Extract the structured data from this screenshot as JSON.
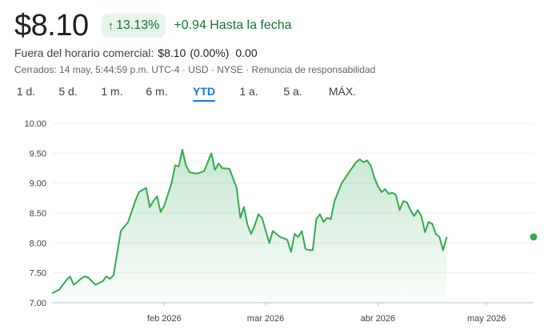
{
  "quote": {
    "price": "$8.10",
    "change_percent": "13.13%",
    "change_abs": "+0.94 Hasta la fecha",
    "arrow_icon": "arrow-up-icon"
  },
  "after_hours": {
    "label": "Fuera del horario comercial:",
    "price": "$8.10",
    "percent": "(0.00%)",
    "abs": "0.00"
  },
  "meta": "Cerrados: 14 may, 5:44:59 p.m. UTC-4 · USD · NYSE · Renuncia de responsabilidad",
  "ranges": [
    {
      "label": "1 d.",
      "active": false
    },
    {
      "label": "5 d.",
      "active": false
    },
    {
      "label": "1 m.",
      "active": false
    },
    {
      "label": "6 m.",
      "active": false
    },
    {
      "label": "YTD",
      "active": true
    },
    {
      "label": "1 a.",
      "active": false
    },
    {
      "label": "5 a.",
      "active": false
    },
    {
      "label": "MÁX.",
      "active": false
    }
  ],
  "colors": {
    "line": "#34a853",
    "positive_text": "#137333",
    "positive_bg": "#e6f4ea",
    "active_tab": "#1a73e8"
  },
  "chart_data": {
    "type": "area",
    "ylim": [
      7.0,
      10.0
    ],
    "yticks": [
      "10.00",
      "9.50",
      "9.00",
      "8.50",
      "8.00",
      "7.50",
      "7.00"
    ],
    "xlim": [
      0,
      133
    ],
    "xticks": [
      {
        "label": "feb 2026",
        "x": 31
      },
      {
        "label": "mar 2026",
        "x": 59
      },
      {
        "label": "abr 2026",
        "x": 90
      },
      {
        "label": "may 2026",
        "x": 120
      }
    ],
    "values": [
      [
        0,
        7.16
      ],
      [
        2,
        7.22
      ],
      [
        4,
        7.38
      ],
      [
        5,
        7.44
      ],
      [
        6,
        7.3
      ],
      [
        8,
        7.4
      ],
      [
        9,
        7.44
      ],
      [
        10,
        7.42
      ],
      [
        12,
        7.3
      ],
      [
        14,
        7.36
      ],
      [
        15,
        7.44
      ],
      [
        16,
        7.4
      ],
      [
        17,
        7.46
      ],
      [
        19,
        8.2
      ],
      [
        21,
        8.35
      ],
      [
        23,
        8.7
      ],
      [
        24,
        8.85
      ],
      [
        26,
        8.92
      ],
      [
        27,
        8.6
      ],
      [
        28,
        8.7
      ],
      [
        29,
        8.78
      ],
      [
        30,
        8.52
      ],
      [
        31,
        8.62
      ],
      [
        33,
        9.0
      ],
      [
        34,
        9.3
      ],
      [
        35,
        9.28
      ],
      [
        36,
        9.56
      ],
      [
        37,
        9.3
      ],
      [
        38,
        9.18
      ],
      [
        40,
        9.16
      ],
      [
        42,
        9.2
      ],
      [
        43,
        9.35
      ],
      [
        44,
        9.5
      ],
      [
        45,
        9.22
      ],
      [
        46,
        9.33
      ],
      [
        47,
        9.25
      ],
      [
        49,
        9.24
      ],
      [
        51,
        8.92
      ],
      [
        52,
        8.42
      ],
      [
        53,
        8.6
      ],
      [
        54,
        8.3
      ],
      [
        55,
        8.15
      ],
      [
        56,
        8.3
      ],
      [
        57,
        8.48
      ],
      [
        58,
        8.42
      ],
      [
        60,
        8.0
      ],
      [
        61,
        8.2
      ],
      [
        63,
        8.1
      ],
      [
        64,
        8.08
      ],
      [
        65,
        8.05
      ],
      [
        66,
        7.85
      ],
      [
        67,
        8.15
      ],
      [
        68,
        8.1
      ],
      [
        69,
        8.2
      ],
      [
        70,
        7.9
      ],
      [
        71,
        7.88
      ],
      [
        72,
        7.88
      ],
      [
        73,
        8.4
      ],
      [
        74,
        8.48
      ],
      [
        75,
        8.35
      ],
      [
        76,
        8.42
      ],
      [
        77,
        8.4
      ],
      [
        78,
        8.7
      ],
      [
        80,
        9.0
      ],
      [
        82,
        9.18
      ],
      [
        84,
        9.35
      ],
      [
        85,
        9.4
      ],
      [
        86,
        9.35
      ],
      [
        87,
        9.38
      ],
      [
        88,
        9.3
      ],
      [
        89,
        9.1
      ],
      [
        90,
        8.95
      ],
      [
        91,
        8.85
      ],
      [
        92,
        8.9
      ],
      [
        93,
        8.82
      ],
      [
        94,
        8.84
      ],
      [
        95,
        8.8
      ],
      [
        96,
        8.55
      ],
      [
        97,
        8.7
      ],
      [
        98,
        8.68
      ],
      [
        99,
        8.55
      ],
      [
        100,
        8.45
      ],
      [
        101,
        8.55
      ],
      [
        102,
        8.45
      ],
      [
        103,
        8.18
      ],
      [
        104,
        8.35
      ],
      [
        105,
        8.32
      ],
      [
        106,
        8.15
      ],
      [
        107,
        8.1
      ],
      [
        108,
        7.88
      ],
      [
        109,
        8.1
      ]
    ]
  }
}
